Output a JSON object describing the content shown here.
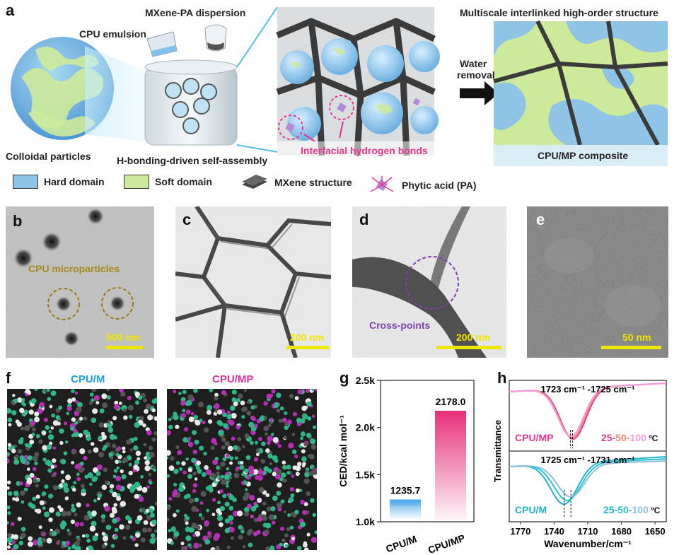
{
  "panel_a": {
    "label": "a",
    "cpu_emulsion": "CPU emulsion",
    "mxene_pa_dispersion": "MXene-PA dispersion",
    "colloidal_particles": "Colloidal particles",
    "self_assembly": "H-bonding-driven self-assembly",
    "interfacial_hbonds": "Interfacial hydrogen bonds",
    "water_removal_1": "Water",
    "water_removal_2": "removal",
    "multiscale": "Multiscale interlinked high-order structure",
    "composite": "CPU/MP composite",
    "legend": {
      "hard": "Hard domain",
      "soft": "Soft  domain",
      "mxene": "MXene structure",
      "pa": "Phytic acid (PA)"
    },
    "colors": {
      "hard": "#8fc4e6",
      "soft": "#cdea9a",
      "mxene": "#444444",
      "pa": "#b58bd8",
      "pink": "#e8368f"
    }
  },
  "panel_b": {
    "label": "b",
    "annotation": "CPU microparticles",
    "scale": "500 nm"
  },
  "panel_c": {
    "label": "c",
    "scale": "200 nm"
  },
  "panel_d": {
    "label": "d",
    "annotation": "Cross-points",
    "scale": "200 nm"
  },
  "panel_e": {
    "label": "e",
    "scale": "50 nm"
  },
  "panel_f": {
    "label": "f",
    "left_title": "CPU/M",
    "right_title": "CPU/MP"
  },
  "panel_g": {
    "label": "g",
    "chart_data": {
      "type": "bar",
      "categories": [
        "CPU/M",
        "CPU/MP"
      ],
      "values": [
        1235.7,
        2178.0
      ],
      "value_labels": [
        "1235.7",
        "2178.0"
      ],
      "ylabel": "CED/kcal mol⁻¹",
      "ylim": [
        1000,
        2500
      ],
      "yticks": [
        "1.0k",
        "1.5k",
        "2.0k",
        "2.5k"
      ],
      "colors": [
        "#4aa8e8",
        "#e8307a"
      ]
    }
  },
  "panel_h": {
    "label": "h",
    "chart_data": {
      "type": "line",
      "xlabel": "Wavenumber/cm⁻¹",
      "ylabel": "Transmittance",
      "xlim": [
        1780,
        1640
      ],
      "xticks": [
        1770,
        1740,
        1710,
        1680,
        1650
      ],
      "top": {
        "annotation": "1723 cm⁻¹ -1725 cm⁻¹",
        "sample": "CPU/MP",
        "temps": [
          "25",
          "50",
          "100"
        ],
        "temp_colors": [
          "#e8368f",
          "#f08a6e",
          "#f59ae0"
        ],
        "unit": " ºC"
      },
      "bottom": {
        "annotation": "1725 cm⁻¹ -1731 cm⁻¹",
        "sample": "CPU/M",
        "temps": [
          "25",
          "50",
          "100"
        ],
        "temp_colors": [
          "#1fb4d0",
          "#2ec2c8",
          "#8fbfe0"
        ],
        "unit": " ºC"
      }
    }
  }
}
